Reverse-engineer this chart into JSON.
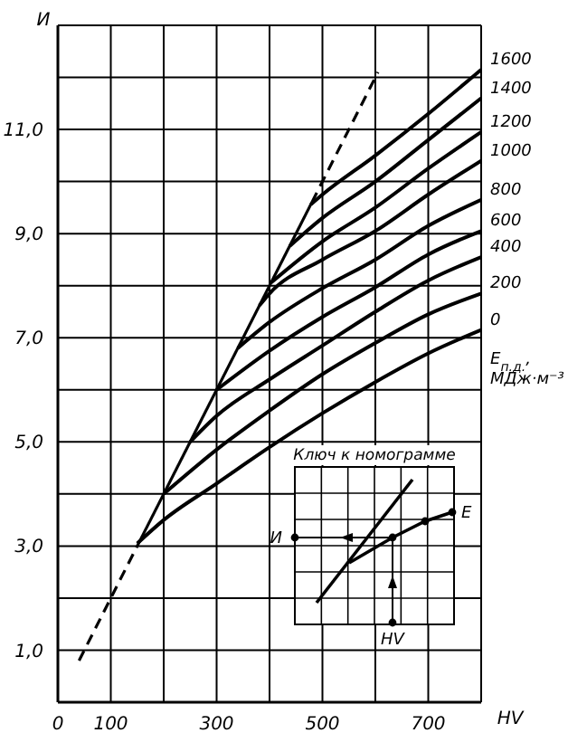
{
  "chart_data": {
    "type": "line",
    "xlabel": "HV",
    "ylabel": "И",
    "legend_title": "E$_{п.д.}$, МДж·м⁻³",
    "xlim": [
      0,
      800
    ],
    "ylim": [
      0,
      13
    ],
    "xticks": [
      0,
      100,
      {
        "value": 200,
        "label": null
      },
      300,
      {
        "value": 400,
        "label": null
      },
      500,
      {
        "value": 600,
        "label": null
      },
      700,
      {
        "value": 800,
        "label": null
      }
    ],
    "yticks": [
      {
        "value": 0,
        "label": null
      },
      {
        "value": 1,
        "label": "1,0"
      },
      {
        "value": 2,
        "label": null
      },
      {
        "value": 3,
        "label": "3,0"
      },
      {
        "value": 4,
        "label": null
      },
      {
        "value": 5,
        "label": "5,0"
      },
      {
        "value": 6,
        "label": null
      },
      {
        "value": 7,
        "label": "7,0"
      },
      {
        "value": 8,
        "label": null
      },
      {
        "value": 9,
        "label": "9,0"
      },
      {
        "value": 10,
        "label": null
      },
      {
        "value": 11,
        "label": "11,0"
      },
      {
        "value": 12,
        "label": null
      },
      {
        "value": 13,
        "label": null
      }
    ],
    "grid": true,
    "marker": "none",
    "annotations": [
      "Ключ к номограмме",
      "И",
      "E",
      "HV"
    ],
    "series": [
      {
        "color": "#000000",
        "line_style": "dashed",
        "x": [
          40,
          150
        ],
        "values": [
          0.8,
          3.0
        ]
      },
      {
        "color": "#000000",
        "line_style": "solid",
        "x": [
          150,
          480
        ],
        "values": [
          3.0,
          9.6
        ]
      },
      {
        "color": "#000000",
        "line_style": "dashed",
        "x": [
          480,
          605
        ],
        "values": [
          9.6,
          12.1
        ]
      },
      {
        "name": "0",
        "color": "#000000",
        "x": [
          150,
          200,
          300,
          400,
          500,
          600,
          700,
          800
        ],
        "values": [
          3.05,
          3.5,
          4.2,
          4.9,
          5.55,
          6.15,
          6.7,
          7.15
        ]
      },
      {
        "name": "200",
        "color": "#000000",
        "x": [
          200,
          300,
          400,
          500,
          600,
          700,
          800
        ],
        "values": [
          4.0,
          4.85,
          5.6,
          6.3,
          6.9,
          7.45,
          7.85
        ]
      },
      {
        "name": "400",
        "color": "#000000",
        "x": [
          250,
          300,
          400,
          500,
          600,
          700,
          800
        ],
        "values": [
          5.0,
          5.5,
          6.2,
          6.85,
          7.5,
          8.1,
          8.55
        ]
      },
      {
        "name": "600",
        "color": "#000000",
        "x": [
          300,
          400,
          500,
          600,
          700,
          800
        ],
        "values": [
          6.0,
          6.75,
          7.4,
          7.97,
          8.6,
          9.05
        ]
      },
      {
        "name": "800",
        "color": "#000000",
        "x": [
          340,
          400,
          500,
          600,
          700,
          800
        ],
        "values": [
          6.8,
          7.3,
          7.95,
          8.5,
          9.15,
          9.65
        ]
      },
      {
        "name": "1000",
        "color": "#000000",
        "x": [
          381,
          400,
          500,
          600,
          700,
          800
        ],
        "values": [
          7.62,
          7.85,
          8.5,
          9.05,
          9.75,
          10.4
        ]
      },
      {
        "name": "1200",
        "color": "#000000",
        "x": [
          403,
          500,
          600,
          700,
          800
        ],
        "values": [
          8.06,
          8.85,
          9.5,
          10.25,
          10.95
        ]
      },
      {
        "name": "1400",
        "color": "#000000",
        "x": [
          438,
          500,
          600,
          700,
          800
        ],
        "values": [
          8.76,
          9.3,
          10.0,
          10.8,
          11.6
        ]
      },
      {
        "name": "1600",
        "color": "#000000",
        "x": [
          478,
          500,
          600,
          700,
          800
        ],
        "values": [
          9.56,
          9.75,
          10.5,
          11.3,
          12.15
        ]
      }
    ]
  }
}
